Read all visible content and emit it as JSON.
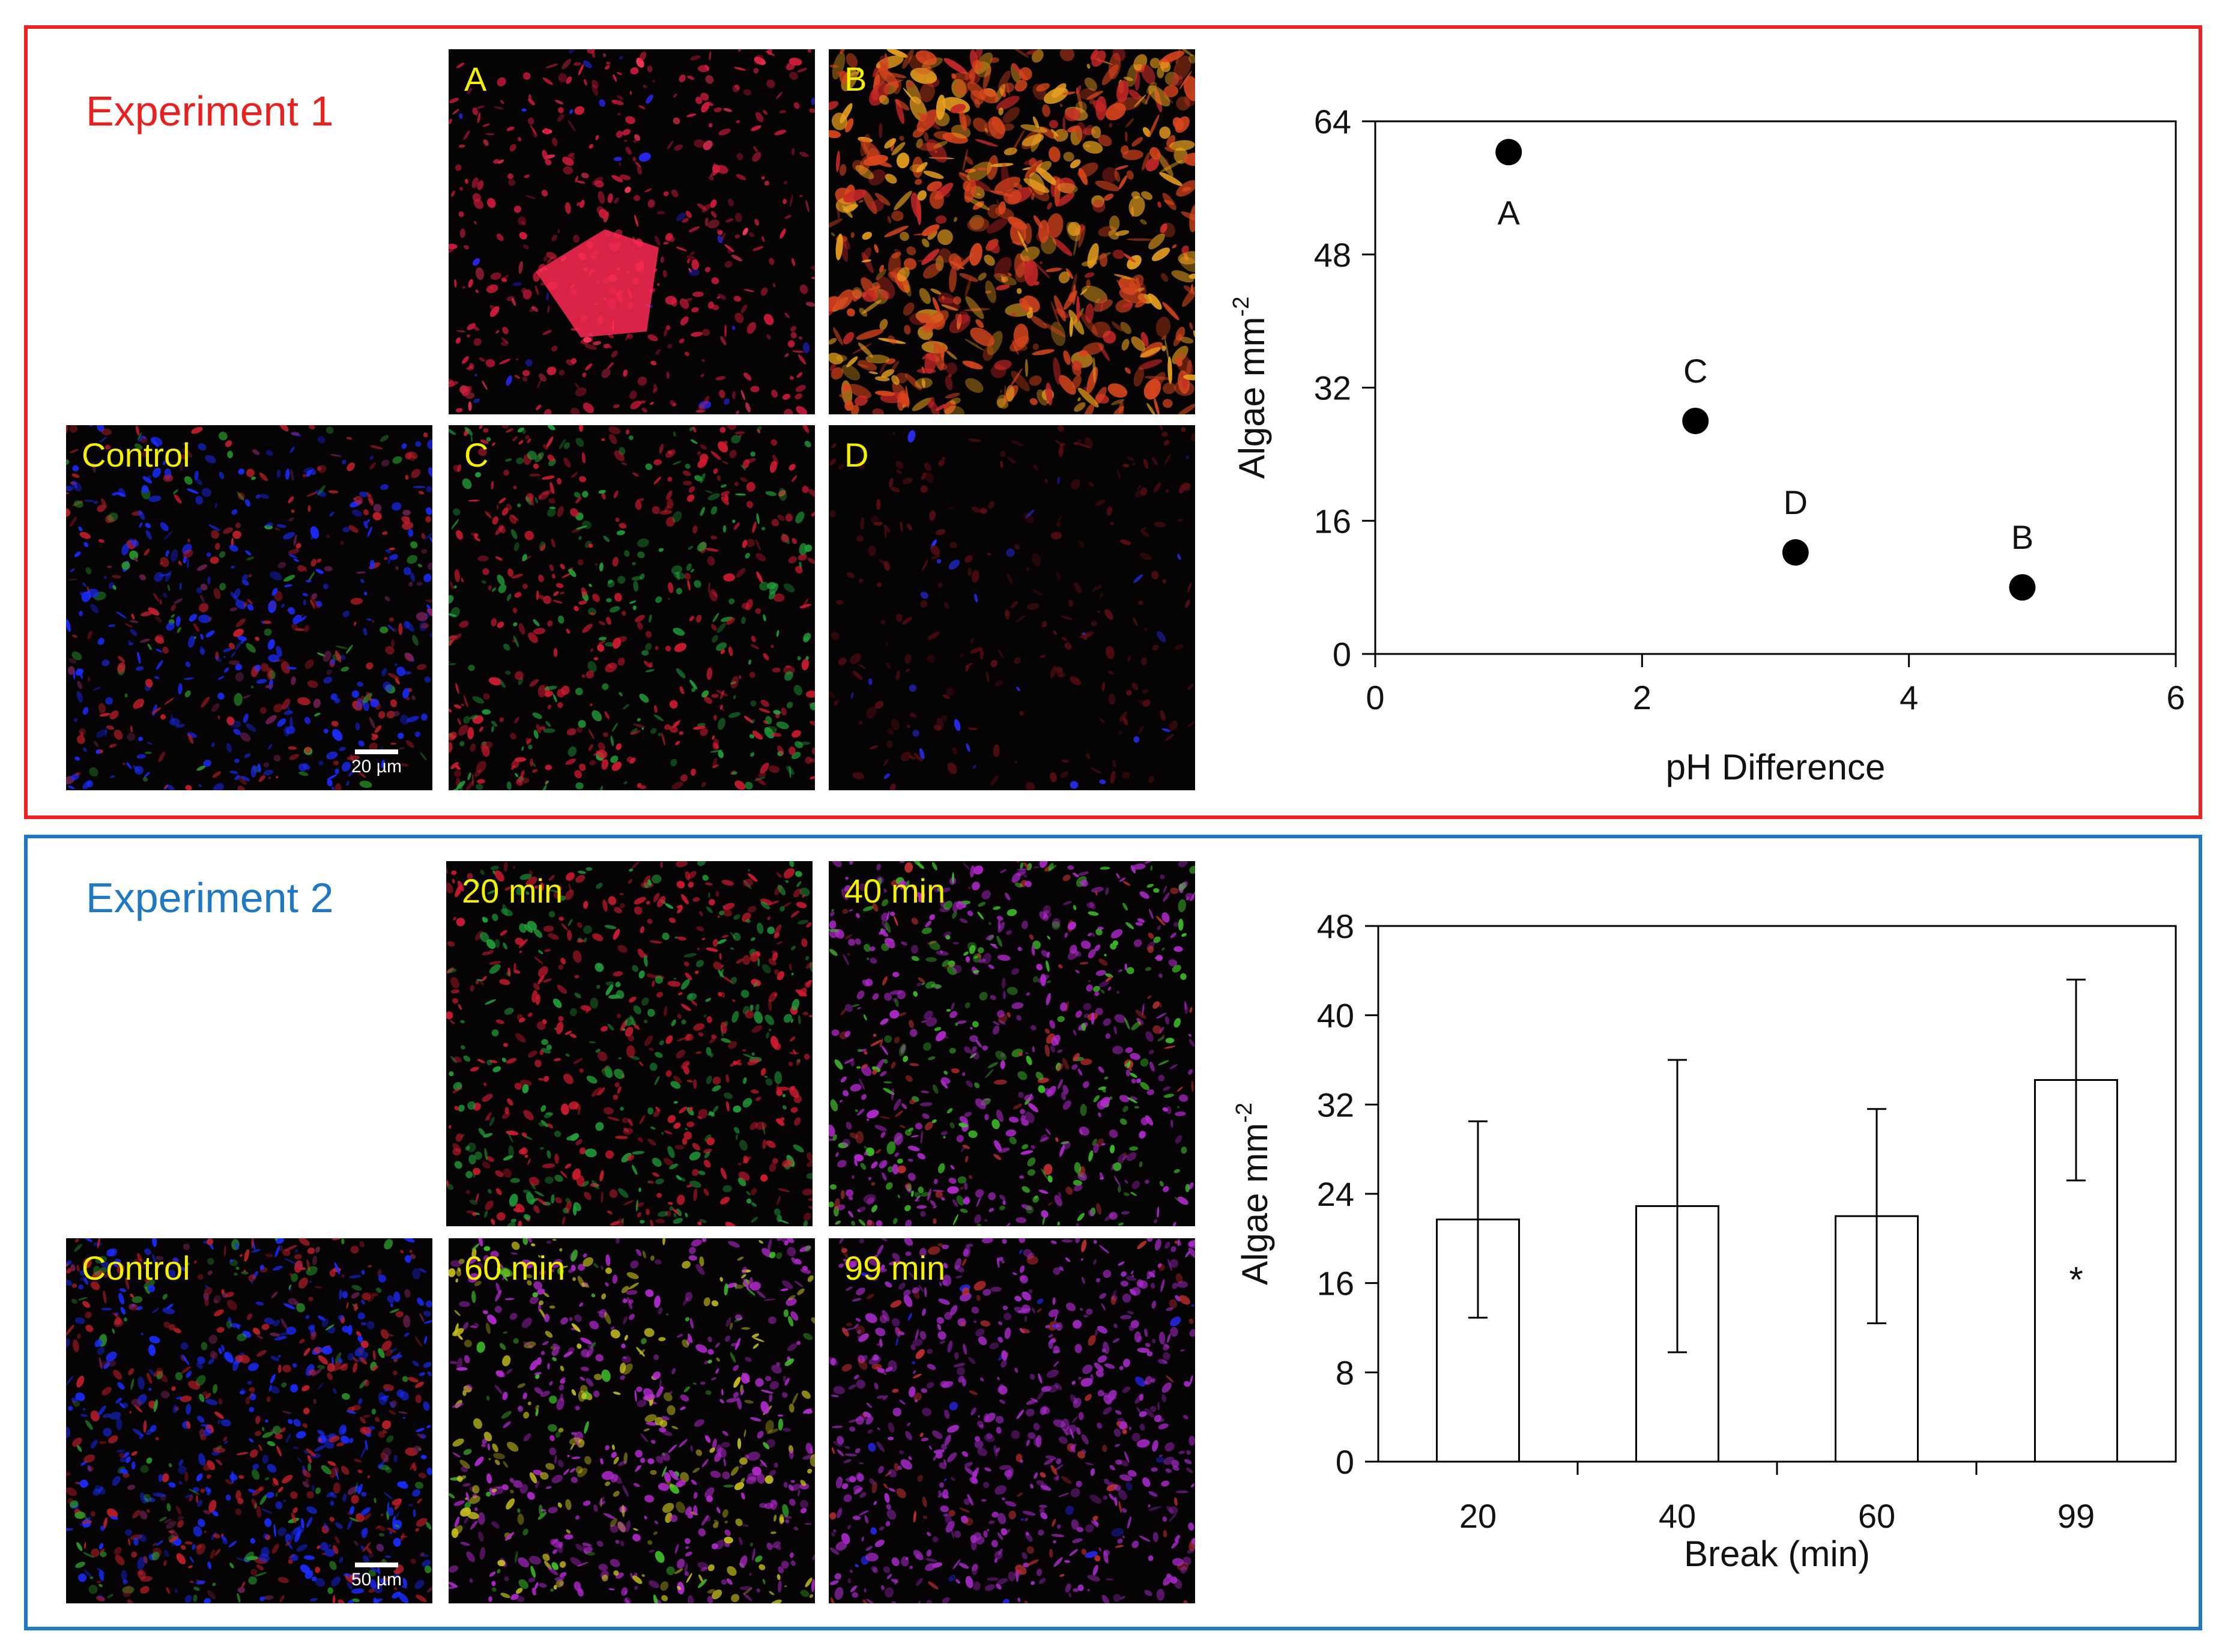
{
  "experiment1": {
    "title": "Experiment 1",
    "title_color": "#e82020",
    "frame_color": "#ee2222",
    "panels": [
      {
        "id": "control",
        "label": "Control",
        "scale": "20 µm",
        "dominant": "blue"
      },
      {
        "id": "A",
        "label": "A",
        "dominant": "red"
      },
      {
        "id": "B",
        "label": "B",
        "dominant": "orange"
      },
      {
        "id": "C",
        "label": "C",
        "dominant": "red-green"
      },
      {
        "id": "D",
        "label": "D",
        "dominant": "dark"
      }
    ]
  },
  "experiment2": {
    "title": "Experiment 2",
    "title_color": "#1f78c4",
    "frame_color": "#1f78c4",
    "panels": [
      {
        "id": "control",
        "label": "Control",
        "scale": "50 µm",
        "dominant": "blue"
      },
      {
        "id": "m20",
        "label": "20 min",
        "dominant": "red-green"
      },
      {
        "id": "m40",
        "label": "40 min",
        "dominant": "magenta-green"
      },
      {
        "id": "m60",
        "label": "60 min",
        "dominant": "magenta-yellow"
      },
      {
        "id": "m99",
        "label": "99 min",
        "dominant": "magenta"
      }
    ]
  },
  "chart_data": [
    {
      "type": "scatter",
      "xlabel": "pH Difference",
      "ylabel": "Algae mm",
      "ylabel_superscript": "-2",
      "xlim": [
        0,
        6
      ],
      "ylim": [
        0,
        64
      ],
      "xticks": [
        0,
        2,
        4,
        6
      ],
      "yticks": [
        0,
        16,
        32,
        48,
        64
      ],
      "points": [
        {
          "label": "A",
          "x": 1.0,
          "y": 60.3
        },
        {
          "label": "C",
          "x": 2.4,
          "y": 28.0
        },
        {
          "label": "D",
          "x": 3.15,
          "y": 12.2
        },
        {
          "label": "B",
          "x": 4.85,
          "y": 8.0
        }
      ]
    },
    {
      "type": "bar",
      "xlabel": "Break (min)",
      "ylabel": "Algae mm",
      "ylabel_superscript": "-2",
      "ylim": [
        0,
        48
      ],
      "yticks": [
        0,
        8,
        16,
        24,
        32,
        40,
        48
      ],
      "categories": [
        "20",
        "40",
        "60",
        "99"
      ],
      "values": [
        21.7,
        22.9,
        22.0,
        34.2
      ],
      "error": [
        8.8,
        13.1,
        9.6,
        9.0
      ],
      "annotations": [
        {
          "category": "99",
          "text": "*"
        }
      ]
    }
  ]
}
